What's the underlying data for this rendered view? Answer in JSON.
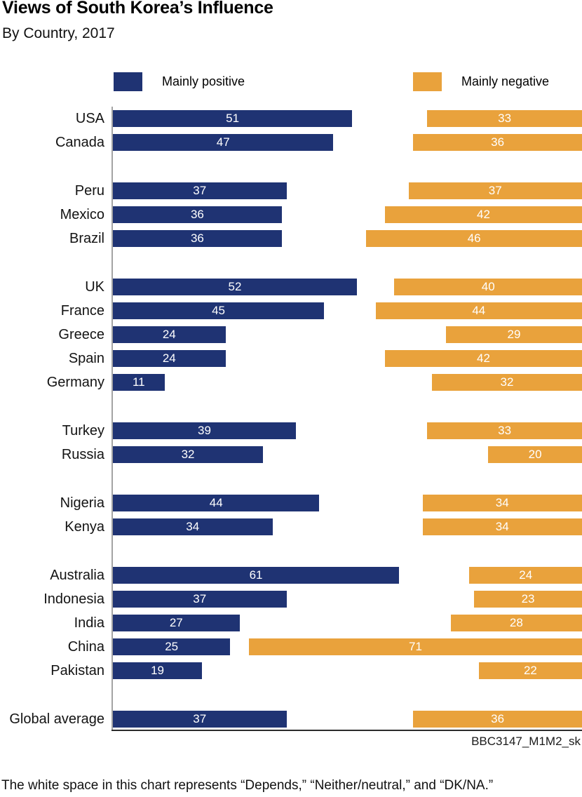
{
  "title": "Views of South Korea’s Influence",
  "subtitle": "By Country, 2017",
  "legend": {
    "positive_label": "Mainly positive",
    "negative_label": "Mainly negative"
  },
  "colors": {
    "positive": "#1f3373",
    "negative": "#e9a23c",
    "axis": "#a3a3a3",
    "baseline": "#2b2b2b"
  },
  "chart_id": "BBC3147_M1M2_sk",
  "footnote": "The white space in this chart represents “Depends,” “Neither/neutral,” and “DK/NA.”",
  "chart_data": {
    "type": "bar",
    "orientation": "horizontal",
    "title": "Views of South Korea’s Influence",
    "subtitle": "By Country, 2017",
    "xlim": [
      0,
      100
    ],
    "grid": false,
    "legend_position": "top",
    "value_labels": "inside-white",
    "categories": [
      "USA",
      "Canada",
      "Peru",
      "Mexico",
      "Brazil",
      "UK",
      "France",
      "Greece",
      "Spain",
      "Germany",
      "Turkey",
      "Russia",
      "Nigeria",
      "Kenya",
      "Australia",
      "Indonesia",
      "India",
      "China",
      "Pakistan",
      "Global average"
    ],
    "group_breaks_after_index": [
      1,
      4,
      9,
      11,
      13,
      18
    ],
    "series": [
      {
        "name": "Mainly positive",
        "align": "left",
        "values": [
          51,
          47,
          37,
          36,
          36,
          52,
          45,
          24,
          24,
          11,
          39,
          32,
          44,
          34,
          61,
          37,
          27,
          25,
          19,
          37
        ]
      },
      {
        "name": "Mainly negative",
        "align": "right",
        "values": [
          33,
          36,
          37,
          42,
          46,
          40,
          44,
          29,
          42,
          32,
          33,
          20,
          34,
          34,
          24,
          23,
          28,
          71,
          22,
          36
        ]
      }
    ]
  }
}
